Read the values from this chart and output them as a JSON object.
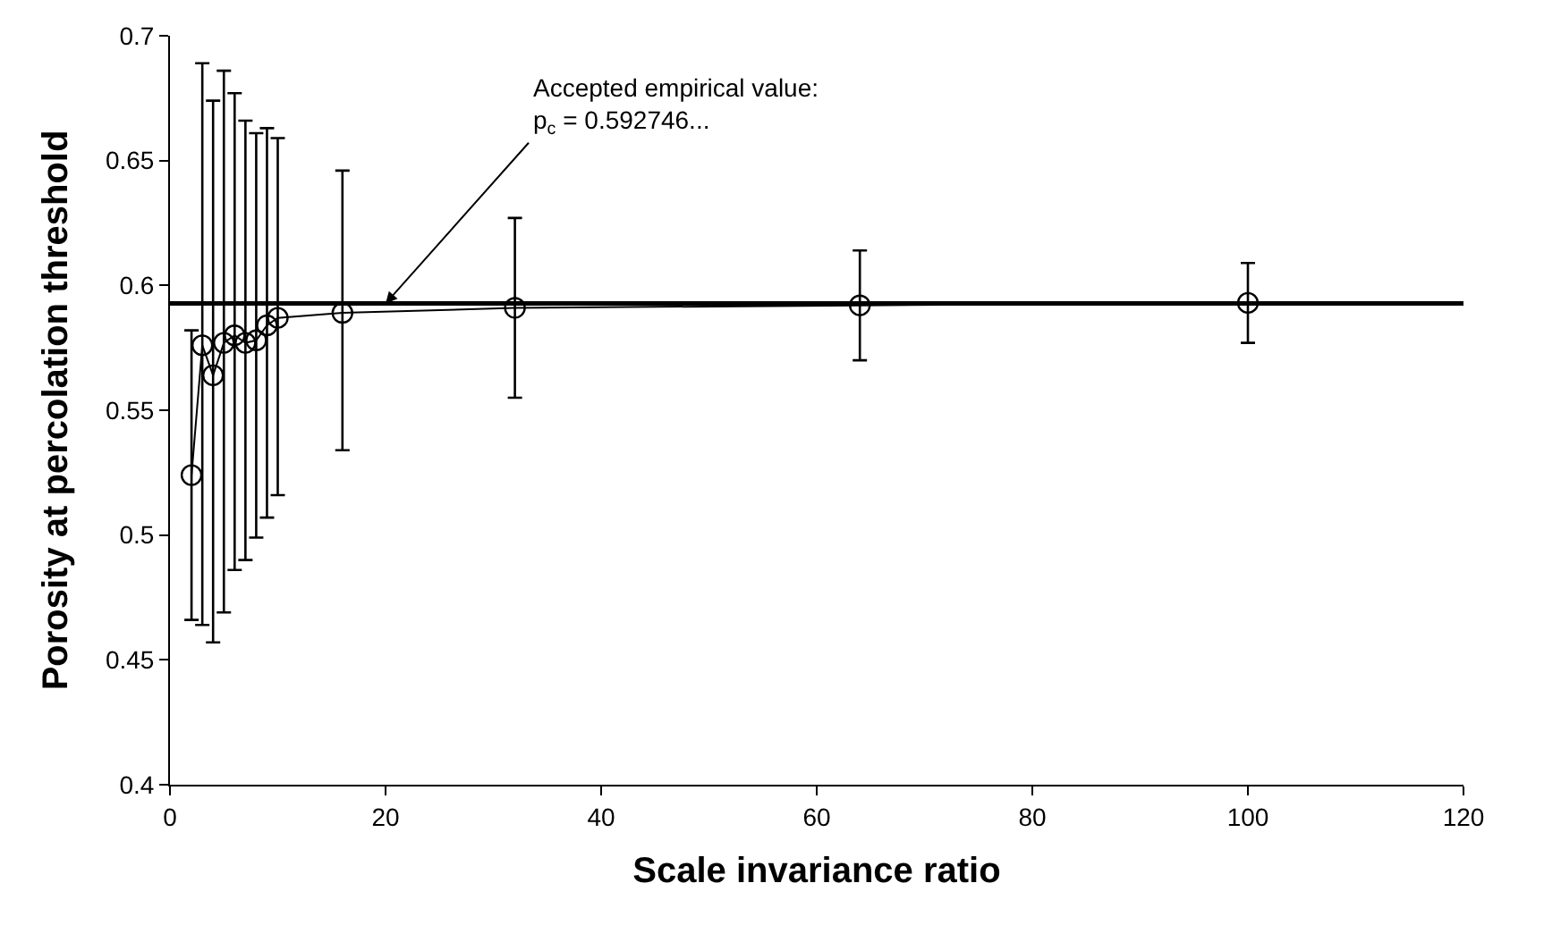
{
  "chart_data": {
    "type": "line",
    "xlabel": "Scale invariance ratio",
    "ylabel": "Porosity at percolation threshold",
    "x": [
      2,
      3,
      4,
      5,
      6,
      7,
      8,
      9,
      10,
      16,
      32,
      64,
      100
    ],
    "series": [
      {
        "color": "#000000",
        "values": [
          0.524,
          0.576,
          0.564,
          0.577,
          0.58,
          0.577,
          0.578,
          0.584,
          0.587,
          0.589,
          0.591,
          0.592,
          0.593
        ],
        "errors": [
          [
            0.466,
            0.582
          ],
          [
            0.464,
            0.689
          ],
          [
            0.457,
            0.674
          ],
          [
            0.469,
            0.686
          ],
          [
            0.486,
            0.677
          ],
          [
            0.49,
            0.666
          ],
          [
            0.499,
            0.661
          ],
          [
            0.507,
            0.663
          ],
          [
            0.516,
            0.659
          ],
          [
            0.534,
            0.646
          ],
          [
            0.555,
            0.627
          ],
          [
            0.57,
            0.614
          ],
          [
            0.577,
            0.609
          ]
        ]
      }
    ],
    "marker": "circle",
    "line_style": "solid",
    "xlim": [
      0,
      120
    ],
    "xticks": [
      0,
      20,
      40,
      60,
      80,
      100,
      120
    ],
    "ylim": [
      0.4,
      0.7
    ],
    "yticks": [
      0.4,
      0.45,
      0.5,
      0.55,
      0.6,
      0.65,
      0.7
    ],
    "ref_lines": [
      {
        "axis": "y",
        "value": 0.592746,
        "color": "#000000"
      }
    ],
    "annotations": [
      {
        "text": "Accepted empirical value:\np$_{c}$ = 0.592746...",
        "x": 20,
        "y": 0.5927
      }
    ]
  }
}
